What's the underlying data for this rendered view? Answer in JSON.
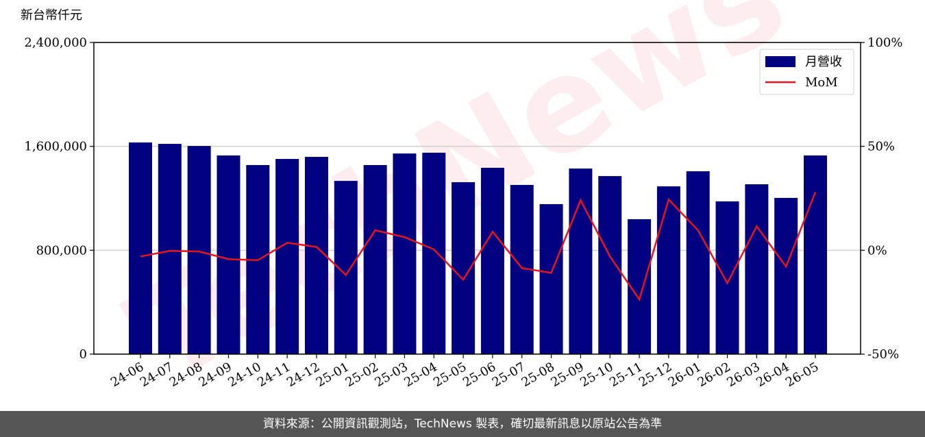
{
  "chart_data": {
    "type": "bar_line",
    "y_label": "新台幣仟元",
    "watermark": "TechNews",
    "categories": [
      "24-06",
      "24-07",
      "24-08",
      "24-09",
      "24-10",
      "24-11",
      "24-12",
      "25-01",
      "25-02",
      "25-03",
      "25-04",
      "25-05",
      "25-06",
      "25-07",
      "25-08",
      "25-09",
      "25-10",
      "25-11",
      "25-12",
      "26-01",
      "26-02",
      "26-03",
      "26-04",
      "26-05"
    ],
    "series": [
      {
        "name": "月營收",
        "type": "bar",
        "color": "#000080",
        "values": [
          1630000,
          1619000,
          1603000,
          1530000,
          1456000,
          1503000,
          1519000,
          1334000,
          1456000,
          1545000,
          1551000,
          1324000,
          1435000,
          1303000,
          1155000,
          1429000,
          1371000,
          1039000,
          1292000,
          1408000,
          1176000,
          1308000,
          1203000,
          1530000
        ]
      },
      {
        "name": "MoM",
        "type": "line",
        "axis": "y2",
        "color": "#e8141a",
        "values": [
          -3.0,
          -0.3,
          -0.6,
          -4.3,
          -4.8,
          3.6,
          1.6,
          -11.9,
          9.6,
          6.3,
          0.4,
          -14.2,
          8.9,
          -8.6,
          -10.9,
          24.1,
          -3.0,
          -23.7,
          24.4,
          9.6,
          -15.8,
          11.5,
          -7.9,
          28.0
        ]
      }
    ],
    "ylim": [
      0,
      2400000
    ],
    "yticks": [
      0,
      {
        "value": 800000,
        "label": "800,000"
      },
      {
        "value": 1600000,
        "label": "1,600,000"
      },
      {
        "value": 2400000,
        "label": "2,400,000"
      }
    ],
    "y2lim": [
      -50,
      100
    ],
    "y2ticks": [
      {
        "value": -50,
        "label": "-50%"
      },
      {
        "value": 0,
        "label": "0%"
      },
      {
        "value": 50,
        "label": "50%"
      },
      {
        "value": 100,
        "label": "100%"
      }
    ],
    "grid": true,
    "legend": "upper right"
  },
  "footer": "資料來源：公開資訊觀測站，TechNews 製表，確切最新訊息以原站公告為準"
}
